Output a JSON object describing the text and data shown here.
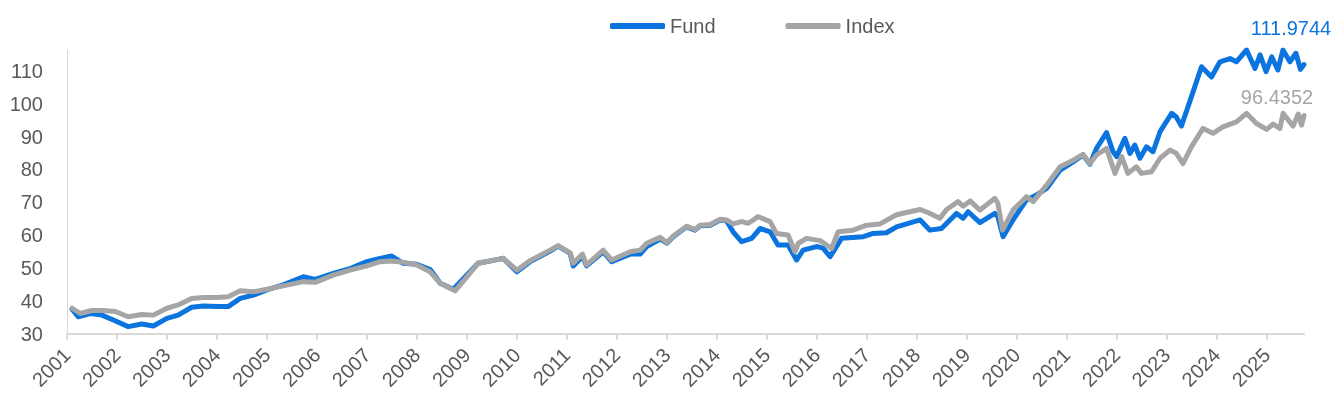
{
  "chart_data": {
    "type": "line",
    "xlim": [
      "2001-01-01",
      "2025-10-01"
    ],
    "xticks": [
      "2001",
      "2002",
      "2003",
      "2004",
      "2005",
      "2006",
      "2007",
      "2008",
      "2009",
      "2010",
      "2011",
      "2012",
      "2013",
      "2014",
      "2015",
      "2016",
      "2017",
      "2018",
      "2019",
      "2020",
      "2021",
      "2022",
      "2023",
      "2024",
      "2025"
    ],
    "ylim": [
      30,
      116.4
    ],
    "yticks": [
      30,
      40,
      50,
      60,
      70,
      80,
      90,
      100,
      110
    ],
    "legend": "top",
    "series": [
      {
        "name": "Fund",
        "color": "#0b74de",
        "x": [
          "2001-02-07",
          "2001-03-24",
          "2001-06-20",
          "2001-09-13",
          "2001-12-06",
          "2002-03-24",
          "2002-07-01",
          "2002-09-24",
          "2003-01-01",
          "2003-03-24",
          "2003-07-01",
          "2003-09-24",
          "2004-01-01",
          "2004-03-24",
          "2004-06-20",
          "2004-09-24",
          "2005-01-01",
          "2005-04-30",
          "2005-09-24",
          "2005-12-20",
          "2006-04-30",
          "2006-09-01",
          "2007-01-01",
          "2007-04-08",
          "2007-07-01",
          "2007-09-24",
          "2008-01-01",
          "2008-04-08",
          "2008-06-20",
          "2008-09-24",
          "2009-03-24",
          "2009-09-24",
          "2010-01-01",
          "2010-04-08",
          "2010-09-01",
          "2010-10-30",
          "2011-01-26",
          "2011-02-17",
          "2011-04-26",
          "2011-05-25",
          "2011-09-24",
          "2011-11-25",
          "2012-04-08",
          "2012-06-20",
          "2012-08-07",
          "2012-11-14",
          "2013-01-01",
          "2013-02-17",
          "2013-05-25",
          "2013-07-26",
          "2013-09-01",
          "2013-11-14",
          "2014-01-26",
          "2014-03-13",
          "2014-04-30",
          "2014-07-01",
          "2014-09-13",
          "2014-11-14",
          "2015-01-26",
          "2015-03-24",
          "2015-06-06",
          "2015-08-07",
          "2015-09-24",
          "2016-01-01",
          "2016-02-17",
          "2016-04-08",
          "2016-07-01",
          "2016-12-06",
          "2017-02-17",
          "2017-05-25",
          "2017-08-07",
          "2018-01-26",
          "2018-04-08",
          "2018-07-01",
          "2018-10-19",
          "2018-12-06",
          "2019-01-12",
          "2019-04-08",
          "2019-07-26",
          "2019-08-17",
          "2019-09-24",
          "2019-12-06",
          "2020-03-13",
          "2020-05-25",
          "2020-08-07",
          "2020-11-14",
          "2021-02-17",
          "2021-04-30",
          "2021-06-20",
          "2021-08-07",
          "2021-10-19",
          "2021-12-06",
          "2022-01-01",
          "2022-03-02",
          "2022-04-08",
          "2022-05-14",
          "2022-06-20",
          "2022-08-07",
          "2022-09-24",
          "2022-11-14",
          "2023-02-07",
          "2023-03-13",
          "2023-04-19",
          "2023-07-01",
          "2023-09-13",
          "2023-11-25",
          "2024-01-26",
          "2024-04-08",
          "2024-05-25",
          "2024-08-07",
          "2024-10-08",
          "2024-11-14",
          "2024-12-28",
          "2025-02-07",
          "2025-03-24",
          "2025-04-30",
          "2025-06-20",
          "2025-08-03",
          "2025-09-05",
          "2025-10-01"
        ],
        "values": [
          37.4,
          35.1,
          36.1,
          35.6,
          34.1,
          32.1,
          32.9,
          32.3,
          34.6,
          35.6,
          38.0,
          38.4,
          38.2,
          38.2,
          40.7,
          41.7,
          43.3,
          44.8,
          47.3,
          46.5,
          48.3,
          49.8,
          51.9,
          52.9,
          53.6,
          51.4,
          51.1,
          49.5,
          45.3,
          43.5,
          51.4,
          52.9,
          48.8,
          51.9,
          55.1,
          56.6,
          54.4,
          50.6,
          53.5,
          50.6,
          54.9,
          51.9,
          54.2,
          54.2,
          56.5,
          58.8,
          57.5,
          59.5,
          62.5,
          61.5,
          62.8,
          63.0,
          64.6,
          64.4,
          61.0,
          58.0,
          59.0,
          62.0,
          61.0,
          57.0,
          57.0,
          52.4,
          55.4,
          56.5,
          56.0,
          53.4,
          59.0,
          59.5,
          60.5,
          60.7,
          62.5,
          64.6,
          61.5,
          62.0,
          66.6,
          65.1,
          67.1,
          63.8,
          66.6,
          65.6,
          59.5,
          64.6,
          70.7,
          72.2,
          74.2,
          79.8,
          82.3,
          84.4,
          81.6,
          86.4,
          91.2,
          85.4,
          83.9,
          89.5,
          84.9,
          87.4,
          83.4,
          86.9,
          85.4,
          91.5,
          97.1,
          96.0,
          93.2,
          102.1,
          111.3,
          108.2,
          112.8,
          113.8,
          112.8,
          116.4,
          110.8,
          114.9,
          109.8,
          114.3,
          110.3,
          116.4,
          112.8,
          115.4,
          110.5,
          111.9744
        ],
        "value_labels": [
          null,
          null,
          null,
          null,
          null,
          null,
          null,
          null,
          null,
          null,
          null,
          null,
          null,
          null,
          null,
          null,
          null,
          null,
          null,
          null,
          null,
          null,
          null,
          null,
          null,
          null,
          null,
          null,
          null,
          null,
          null,
          null,
          null,
          null,
          null,
          null,
          null,
          null,
          null,
          null,
          null,
          null,
          null,
          null,
          null,
          null,
          null,
          null,
          null,
          null,
          null,
          null,
          null,
          null,
          null,
          null,
          null,
          null,
          null,
          null,
          null,
          null,
          null,
          null,
          null,
          null,
          null,
          null,
          null,
          null,
          null,
          null,
          null,
          null,
          null,
          null,
          null,
          null,
          null,
          null,
          null,
          null,
          null,
          null,
          null,
          null,
          null,
          null,
          null,
          null,
          null,
          null,
          null,
          null,
          null,
          null,
          null,
          null,
          null,
          null,
          null,
          null,
          null,
          null,
          null,
          null,
          null,
          null,
          null,
          null,
          null,
          null,
          null,
          null,
          null,
          null,
          null,
          null,
          null,
          "111.9744"
        ]
      },
      {
        "name": "Index",
        "color": "#a5a5a5",
        "x": [
          "2001-02-07",
          "2001-04-08",
          "2001-07-01",
          "2001-09-24",
          "2001-12-20",
          "2002-03-24",
          "2002-07-01",
          "2002-09-24",
          "2003-01-01",
          "2003-03-24",
          "2003-07-01",
          "2003-09-24",
          "2004-01-01",
          "2004-03-24",
          "2004-06-20",
          "2004-09-24",
          "2005-01-01",
          "2005-04-30",
          "2005-09-24",
          "2005-12-20",
          "2006-04-30",
          "2006-09-01",
          "2007-01-01",
          "2007-04-08",
          "2007-07-01",
          "2007-09-24",
          "2008-01-01",
          "2008-04-08",
          "2008-06-20",
          "2008-10-07",
          "2009-03-24",
          "2009-09-24",
          "2010-01-01",
          "2010-04-08",
          "2010-09-01",
          "2010-10-30",
          "2011-01-26",
          "2011-02-17",
          "2011-04-26",
          "2011-05-25",
          "2011-09-24",
          "2011-11-25",
          "2012-04-08",
          "2012-06-20",
          "2012-08-07",
          "2012-11-14",
          "2013-01-01",
          "2013-02-17",
          "2013-05-25",
          "2013-07-26",
          "2013-09-01",
          "2013-11-14",
          "2014-01-26",
          "2014-03-13",
          "2014-04-30",
          "2014-07-01",
          "2014-08-20",
          "2014-10-30",
          "2015-01-26",
          "2015-03-13",
          "2015-06-06",
          "2015-07-26",
          "2015-08-20",
          "2015-10-19",
          "2016-01-26",
          "2016-04-19",
          "2016-06-06",
          "2016-09-24",
          "2017-01-01",
          "2017-04-08",
          "2017-08-07",
          "2018-01-26",
          "2018-04-08",
          "2018-06-20",
          "2018-08-07",
          "2018-10-30",
          "2018-12-06",
          "2019-01-26",
          "2019-04-08",
          "2019-07-26",
          "2019-08-17",
          "2019-09-20",
          "2019-12-06",
          "2020-03-13",
          "2020-05-01",
          "2020-08-07",
          "2020-11-14",
          "2021-02-17",
          "2021-04-30",
          "2021-06-20",
          "2021-08-07",
          "2021-10-19",
          "2021-12-20",
          "2022-02-07",
          "2022-03-24",
          "2022-05-25",
          "2022-07-01",
          "2022-09-13",
          "2022-11-14",
          "2023-01-26",
          "2023-03-13",
          "2023-05-01",
          "2023-07-01",
          "2023-09-24",
          "2023-12-06",
          "2024-02-17",
          "2024-05-25",
          "2024-08-07",
          "2024-10-19",
          "2025-01-01",
          "2025-02-17",
          "2025-04-08",
          "2025-05-01",
          "2025-07-13",
          "2025-08-20",
          "2025-09-13",
          "2025-10-01"
        ],
        "values": [
          37.7,
          36.1,
          37.0,
          37.0,
          36.7,
          35.1,
          35.8,
          35.6,
          37.7,
          38.7,
          40.7,
          41.0,
          41.0,
          41.2,
          43.0,
          42.7,
          43.5,
          44.5,
          45.8,
          45.6,
          47.8,
          49.3,
          50.6,
          51.9,
          52.1,
          51.7,
          50.9,
          48.8,
          45.3,
          43.0,
          51.4,
          52.9,
          49.3,
          52.2,
          55.4,
          56.8,
          54.6,
          51.4,
          54.2,
          50.9,
          55.4,
          52.4,
          54.9,
          55.4,
          57.5,
          59.3,
          57.7,
          59.7,
          62.7,
          61.7,
          63.0,
          63.2,
          64.8,
          64.6,
          63.4,
          64.1,
          63.6,
          65.6,
          64.1,
          60.5,
          60.0,
          54.9,
          57.5,
          59.0,
          58.3,
          55.9,
          61.0,
          61.5,
          63.0,
          63.4,
          66.2,
          67.8,
          66.6,
          65.1,
          67.8,
          70.2,
          68.8,
          70.4,
          67.6,
          71.2,
          69.7,
          61.5,
          67.6,
          71.7,
          70.2,
          75.2,
          80.8,
          82.8,
          84.6,
          81.8,
          84.4,
          86.4,
          78.8,
          83.9,
          78.8,
          80.8,
          78.8,
          79.3,
          83.4,
          85.9,
          84.9,
          81.8,
          86.9,
          92.5,
          91.0,
          93.0,
          94.5,
          97.1,
          94.0,
          92.2,
          93.8,
          92.5,
          97.1,
          93.2,
          96.9,
          93.5,
          96.4352
        ],
        "value_labels": [
          null,
          null,
          null,
          null,
          null,
          null,
          null,
          null,
          null,
          null,
          null,
          null,
          null,
          null,
          null,
          null,
          null,
          null,
          null,
          null,
          null,
          null,
          null,
          null,
          null,
          null,
          null,
          null,
          null,
          null,
          null,
          null,
          null,
          null,
          null,
          null,
          null,
          null,
          null,
          null,
          null,
          null,
          null,
          null,
          null,
          null,
          null,
          null,
          null,
          null,
          null,
          null,
          null,
          null,
          null,
          null,
          null,
          null,
          null,
          null,
          null,
          null,
          null,
          null,
          null,
          null,
          null,
          null,
          null,
          null,
          null,
          null,
          null,
          null,
          null,
          null,
          null,
          null,
          null,
          null,
          null,
          null,
          null,
          null,
          null,
          null,
          null,
          null,
          null,
          null,
          null,
          null,
          null,
          null,
          null,
          null,
          null,
          null,
          null,
          null,
          null,
          null,
          null,
          null,
          null,
          null,
          null,
          null,
          null,
          null,
          null,
          null,
          null,
          null,
          null,
          null,
          "96.4352"
        ]
      }
    ]
  }
}
